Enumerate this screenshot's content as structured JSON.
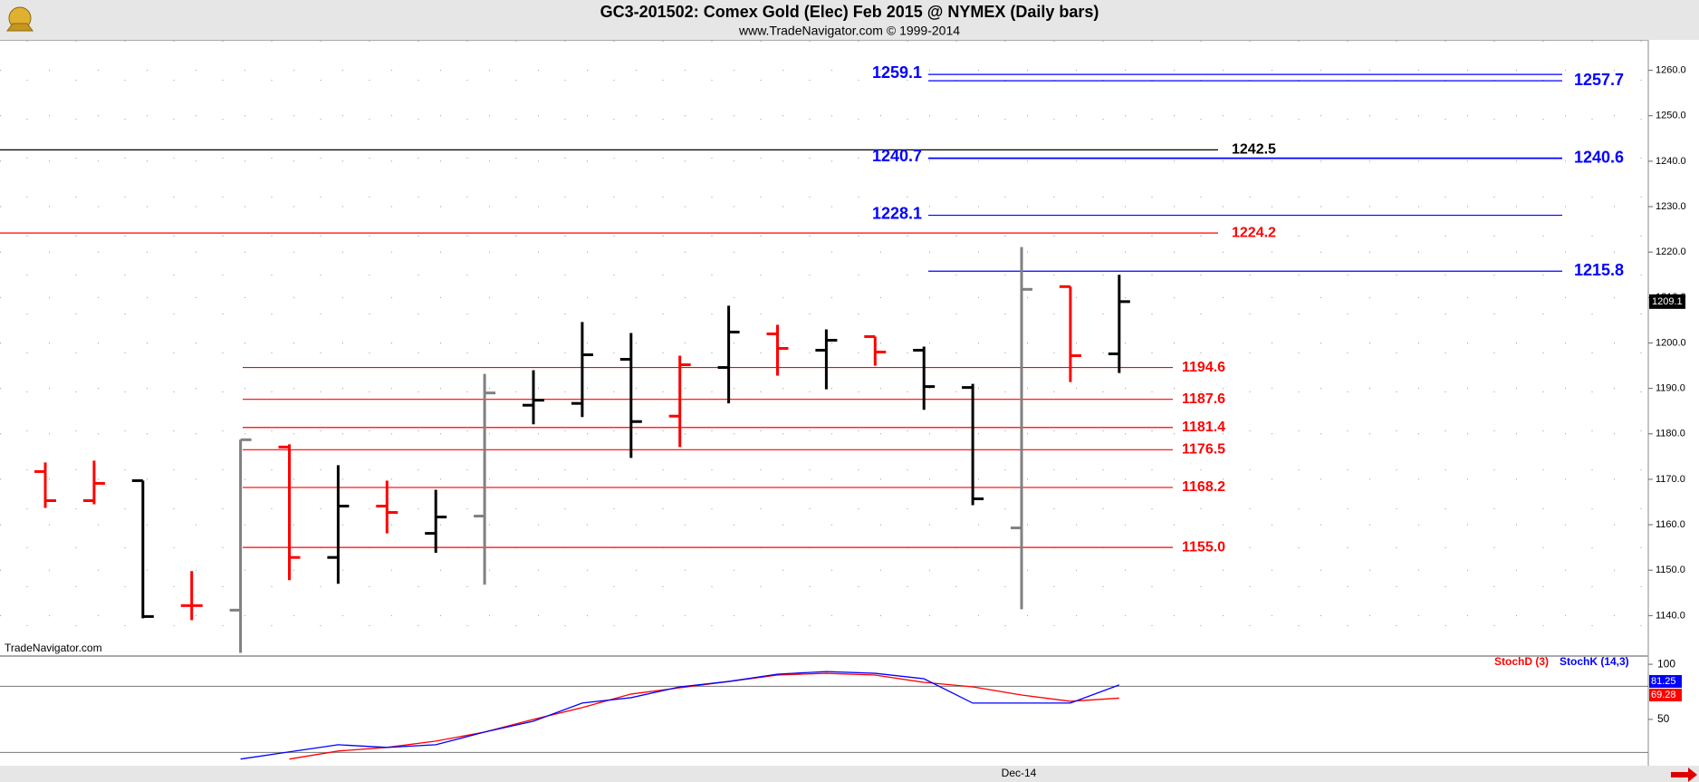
{
  "header": {
    "title": "GC3-201502:  Comex Gold (Elec) Feb 2015 @ NYMEX  (Daily bars)",
    "subtitle": "www.TradeNavigator.com © 1999-2014"
  },
  "chart_data": [
    {
      "type": "ohlc",
      "watermark": "TradeNavigator.com",
      "grid": true,
      "ylim": [
        1131.5,
        1266.5
      ],
      "yticks": [
        {
          "value": 1140,
          "label": "1140.0"
        },
        {
          "value": 1150,
          "label": "1150.0"
        },
        {
          "value": 1160,
          "label": "1160.0"
        },
        {
          "value": 1170,
          "label": "1170.0"
        },
        {
          "value": 1180,
          "label": "1180.0"
        },
        {
          "value": 1190,
          "label": "1190.0"
        },
        {
          "value": 1200,
          "label": "1200.0"
        },
        {
          "value": 1210,
          "label": "1210.0"
        },
        {
          "value": 1220,
          "label": "1220.0"
        },
        {
          "value": 1230,
          "label": "1230.0"
        },
        {
          "value": 1240,
          "label": "1240.0"
        },
        {
          "value": 1250,
          "label": "1250.0"
        },
        {
          "value": 1260,
          "label": "1260.0"
        }
      ],
      "open": [
        1171.7,
        1165.3,
        1169.7,
        1142.2,
        1141.2,
        1177.1,
        1152.8,
        1164.1,
        1158.1,
        1161.9,
        1186.3,
        1186.7,
        1196.4,
        1183.9,
        1194.6,
        1202.0,
        1198.4,
        1201.4,
        1198.4,
        1190.2,
        1159.3,
        1212.4,
        1197.6
      ],
      "high": [
        1173.7,
        1174.1,
        1169.7,
        1149.8,
        1178.7,
        1177.7,
        1173.1,
        1169.7,
        1167.7,
        1193.2,
        1194.0,
        1204.6,
        1202.2,
        1197.2,
        1208.2,
        1204.0,
        1203.0,
        1201.4,
        1199.2,
        1191.0,
        1221.1,
        1212.4,
        1215.0
      ],
      "low": [
        1163.7,
        1164.5,
        1139.4,
        1139.0,
        1131.8,
        1147.8,
        1147.0,
        1158.1,
        1153.8,
        1146.8,
        1182.1,
        1183.7,
        1174.7,
        1177.1,
        1186.7,
        1192.8,
        1189.8,
        1195.0,
        1185.3,
        1164.3,
        1141.4,
        1191.4,
        1193.4
      ],
      "close": [
        1165.3,
        1169.1,
        1139.8,
        1142.2,
        1178.7,
        1152.8,
        1164.1,
        1162.7,
        1161.7,
        1189.0,
        1187.4,
        1197.4,
        1182.7,
        1195.2,
        1202.4,
        1198.8,
        1200.6,
        1198.0,
        1190.4,
        1165.7,
        1211.8,
        1197.2,
        1209.1
      ],
      "colors": [
        "#ff0000",
        "#ff0000",
        "#000000",
        "#ff0000",
        "#808080",
        "#ff0000",
        "#000000",
        "#ff0000",
        "#000000",
        "#808080",
        "#000000",
        "#000000",
        "#000000",
        "#ff0000",
        "#000000",
        "#ff0000",
        "#000000",
        "#ff0000",
        "#000000",
        "#000000",
        "#808080",
        "#ff0000",
        "#000000"
      ],
      "levels": [
        {
          "value": 1259.1,
          "color": "#0000ff"
        },
        {
          "value": 1257.7,
          "color": "#0000ff"
        },
        {
          "value": 1242.5,
          "color": "#000000"
        },
        {
          "value": 1240.7,
          "color": "#0000ff"
        },
        {
          "value": 1240.6,
          "color": "#0000ff"
        },
        {
          "value": 1228.1,
          "color": "#0000ff"
        },
        {
          "value": 1224.2,
          "color": "#ff0000"
        },
        {
          "value": 1215.8,
          "color": "#0000ff"
        },
        {
          "value": 1194.6,
          "color": "#ff0000"
        },
        {
          "value": 1187.6,
          "color": "#ff0000"
        },
        {
          "value": 1181.4,
          "color": "#ff0000"
        },
        {
          "value": 1176.5,
          "color": "#ff0000"
        },
        {
          "value": 1168.2,
          "color": "#ff0000"
        },
        {
          "value": 1155,
          "label": "1155.0",
          "color": "#ff0000"
        }
      ]
    },
    {
      "type": "line",
      "ylim": [
        8,
        105
      ],
      "yticks": [
        50,
        100
      ],
      "hlines": [
        80,
        20
      ],
      "xlabel": "Dec-14",
      "series": [
        {
          "name": "StochD (3)",
          "color": "#ff0000",
          "values": [
            null,
            null,
            null,
            null,
            null,
            14,
            21.3,
            24.6,
            30.3,
            38.5,
            50,
            60.7,
            73,
            78.7,
            84.4,
            90.2,
            91.8,
            90.2,
            83.6,
            79.5,
            72.1,
            66.4,
            69.28
          ]
        },
        {
          "name": "StochK (14,3)",
          "color": "#0000ff",
          "values": [
            null,
            null,
            null,
            null,
            14,
            20.5,
            27,
            24.6,
            27,
            38.5,
            48.4,
            64.8,
            69.7,
            79.5,
            84.4,
            91,
            93.4,
            91.8,
            86.9,
            64.8,
            64.8,
            64.8,
            81.25
          ]
        }
      ]
    }
  ]
}
